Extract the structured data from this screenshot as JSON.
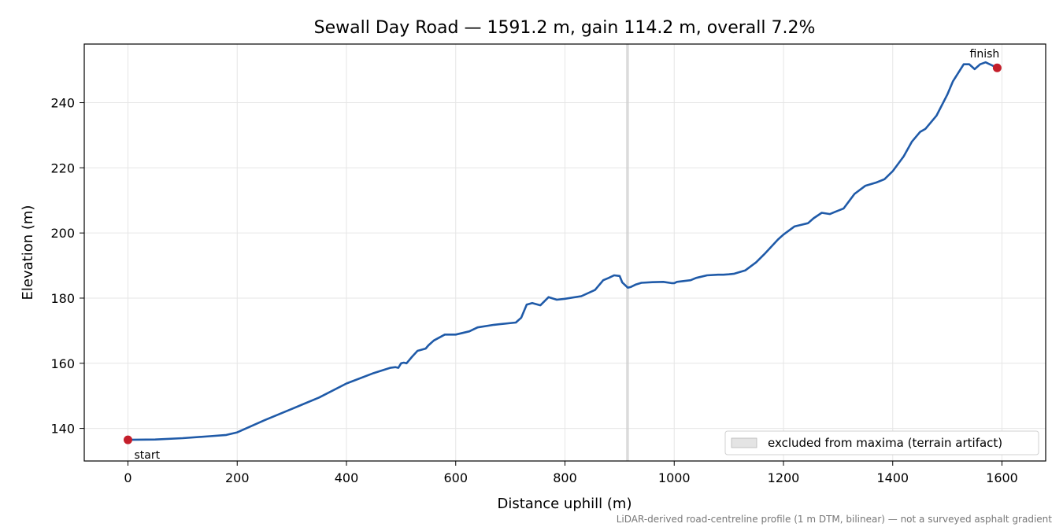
{
  "chart_data": {
    "type": "line",
    "title": "Sewall Day Road — 1591.2 m, gain 114.2 m, overall 7.2%",
    "xlabel": "Distance uphill (m)",
    "ylabel": "Elevation (m)",
    "xlim": [
      -80,
      1680
    ],
    "ylim": [
      130,
      258
    ],
    "xticks": [
      0,
      200,
      400,
      600,
      800,
      1000,
      1200,
      1400,
      1600
    ],
    "yticks": [
      140,
      160,
      180,
      200,
      220,
      240
    ],
    "grid": true,
    "legend_location": "lower-right",
    "footnote": "LiDAR-derived road-centreline profile (1 m DTM, bilinear) — not a surveyed asphalt gradient",
    "excluded_band": {
      "x_range": [
        912,
        917
      ],
      "label": "excluded from maxima (terrain artifact)"
    },
    "markers": [
      {
        "label": "start",
        "x": 0,
        "y": 136.5
      },
      {
        "label": "finish",
        "x": 1591.2,
        "y": 250.7
      }
    ],
    "series": [
      {
        "color": "#1f5aa8",
        "x": [
          0,
          50,
          100,
          150,
          180,
          200,
          250,
          300,
          350,
          400,
          450,
          480,
          490,
          495,
          500,
          505,
          510,
          520,
          530,
          545,
          550,
          560,
          580,
          600,
          625,
          640,
          670,
          710,
          720,
          730,
          740,
          755,
          770,
          785,
          800,
          830,
          855,
          870,
          880,
          890,
          900,
          905,
          915,
          920,
          930,
          940,
          960,
          980,
          995,
          1000,
          1005,
          1030,
          1040,
          1060,
          1080,
          1090,
          1100,
          1110,
          1130,
          1150,
          1165,
          1190,
          1200,
          1220,
          1245,
          1255,
          1270,
          1285,
          1295,
          1310,
          1330,
          1350,
          1370,
          1385,
          1400,
          1420,
          1435,
          1450,
          1460,
          1480,
          1500,
          1510,
          1530,
          1540,
          1550,
          1560,
          1570,
          1580,
          1591.2
        ],
        "y": [
          136.5,
          136.6,
          137.0,
          137.6,
          138.0,
          138.8,
          142.5,
          146.0,
          149.5,
          153.8,
          157.0,
          158.6,
          158.8,
          158.6,
          160.0,
          160.2,
          160.0,
          162.0,
          163.8,
          164.5,
          165.5,
          167.0,
          168.8,
          168.8,
          169.8,
          171.0,
          171.8,
          172.5,
          174.0,
          178.0,
          178.5,
          177.8,
          180.3,
          179.5,
          179.8,
          180.6,
          182.5,
          185.5,
          186.2,
          187.0,
          186.8,
          184.8,
          183.2,
          183.4,
          184.2,
          184.7,
          184.9,
          185.0,
          184.6,
          184.6,
          185.0,
          185.5,
          186.2,
          187.0,
          187.2,
          187.2,
          187.3,
          187.5,
          188.5,
          191.0,
          193.5,
          198.0,
          199.5,
          202.0,
          203.0,
          204.5,
          206.2,
          205.8,
          206.5,
          207.5,
          212.0,
          214.5,
          215.5,
          216.5,
          219.0,
          223.5,
          228.0,
          231.0,
          232.0,
          236.0,
          242.5,
          246.5,
          251.8,
          251.8,
          250.3,
          251.8,
          252.4,
          251.6,
          250.7
        ]
      }
    ]
  }
}
